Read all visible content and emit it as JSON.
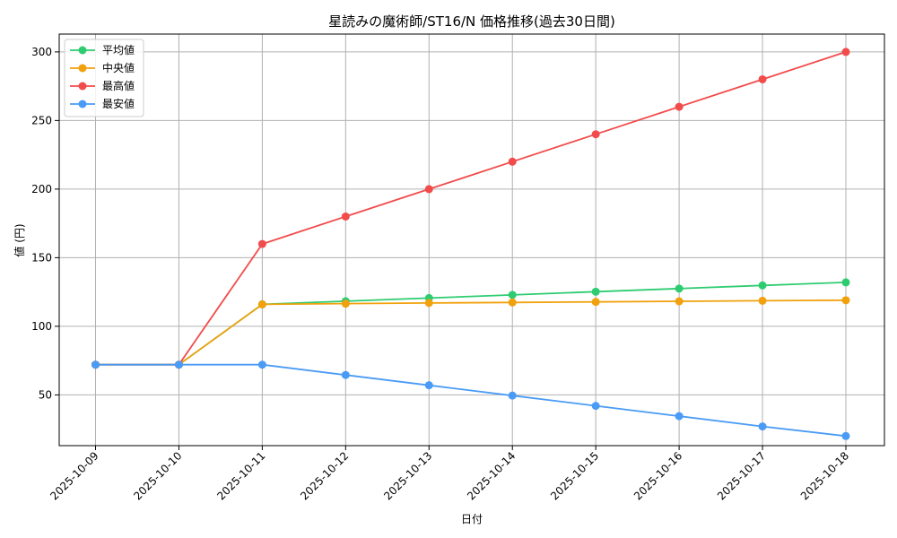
{
  "chart_data": {
    "type": "line",
    "title": "星読みの魔術師/ST16/N 価格推移(過去30日間)",
    "xlabel": "日付",
    "ylabel": "値 (円)",
    "categories": [
      "2025-10-09",
      "2025-10-10",
      "2025-10-11",
      "2025-10-12",
      "2025-10-13",
      "2025-10-14",
      "2025-10-15",
      "2025-10-16",
      "2025-10-17",
      "2025-10-18"
    ],
    "ylim": [
      13,
      313
    ],
    "yticks": [
      50,
      100,
      150,
      200,
      250,
      300
    ],
    "grid": true,
    "legend_position": "top-left",
    "series": [
      {
        "name": "平均値",
        "color": "#2ecc71",
        "values": [
          72,
          72,
          116,
          118.3,
          120.6,
          122.9,
          125.2,
          127.5,
          129.8,
          132
        ]
      },
      {
        "name": "中央値",
        "color": "#f1a10d",
        "values": [
          72,
          72,
          116,
          116.5,
          117,
          117.4,
          117.8,
          118.2,
          118.6,
          119
        ]
      },
      {
        "name": "最高値",
        "color": "#f24b4b",
        "values": [
          72,
          72,
          160,
          180,
          200,
          220,
          240,
          260,
          280,
          300
        ]
      },
      {
        "name": "最安値",
        "color": "#4a9bf5",
        "values": [
          72,
          72,
          72,
          64.5,
          57,
          49.5,
          42,
          34.5,
          27,
          20
        ]
      }
    ]
  }
}
